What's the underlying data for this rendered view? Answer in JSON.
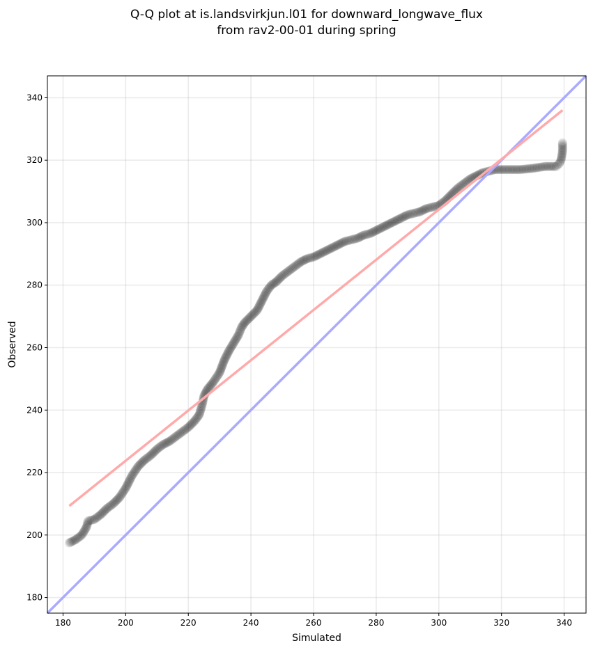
{
  "title_line1": "Q-Q plot at is.landsvirkjun.l01 for downward_longwave_flux",
  "title_line2": "from rav2-00-01 during spring",
  "chart_data": {
    "type": "scatter",
    "title": "Q-Q plot at is.landsvirkjun.l01 for downward_longwave_flux from rav2-00-01 during spring",
    "xlabel": "Simulated",
    "ylabel": "Observed",
    "xlim": [
      175,
      347
    ],
    "ylim": [
      175,
      347
    ],
    "xticks": [
      180,
      200,
      220,
      240,
      260,
      280,
      300,
      320,
      340
    ],
    "yticks": [
      180,
      200,
      220,
      240,
      260,
      280,
      300,
      320,
      340
    ],
    "grid": true,
    "quantile_curve": [
      [
        182,
        197.5
      ],
      [
        184,
        198.5
      ],
      [
        186,
        200
      ],
      [
        187.5,
        202.5
      ],
      [
        188,
        204.5
      ],
      [
        190,
        205
      ],
      [
        192,
        206.5
      ],
      [
        194,
        208.5
      ],
      [
        196,
        210
      ],
      [
        198,
        212
      ],
      [
        200,
        215
      ],
      [
        202,
        219
      ],
      [
        204,
        222
      ],
      [
        206,
        224
      ],
      [
        208,
        225.5
      ],
      [
        210,
        227.5
      ],
      [
        212,
        229
      ],
      [
        214,
        230
      ],
      [
        216,
        231.5
      ],
      [
        218,
        233
      ],
      [
        220,
        234.5
      ],
      [
        222,
        236.5
      ],
      [
        223.5,
        238.5
      ],
      [
        224.5,
        242
      ],
      [
        225,
        244.5
      ],
      [
        226,
        246.5
      ],
      [
        228,
        249
      ],
      [
        230,
        252
      ],
      [
        231.5,
        256
      ],
      [
        233,
        259
      ],
      [
        234.5,
        261.5
      ],
      [
        236,
        264
      ],
      [
        237,
        266.5
      ],
      [
        238,
        268
      ],
      [
        240,
        270
      ],
      [
        242,
        272
      ],
      [
        243.5,
        275
      ],
      [
        245,
        278
      ],
      [
        246.5,
        280
      ],
      [
        248,
        281
      ],
      [
        250,
        283
      ],
      [
        252,
        284.5
      ],
      [
        254,
        286
      ],
      [
        256,
        287.5
      ],
      [
        258,
        288.5
      ],
      [
        260,
        289
      ],
      [
        262,
        290
      ],
      [
        264,
        291
      ],
      [
        266,
        292
      ],
      [
        268,
        293
      ],
      [
        270,
        294
      ],
      [
        272,
        294.5
      ],
      [
        274,
        295
      ],
      [
        276,
        296
      ],
      [
        278,
        296.5
      ],
      [
        280,
        297.5
      ],
      [
        282,
        298.5
      ],
      [
        284,
        299.5
      ],
      [
        286,
        300.5
      ],
      [
        288,
        301.5
      ],
      [
        290,
        302.5
      ],
      [
        292,
        303
      ],
      [
        294,
        303.5
      ],
      [
        296,
        304.5
      ],
      [
        298,
        305
      ],
      [
        300,
        305.5
      ],
      [
        302,
        307
      ],
      [
        304,
        309
      ],
      [
        306,
        311
      ],
      [
        308,
        312.5
      ],
      [
        310,
        314
      ],
      [
        312,
        315
      ],
      [
        314,
        316
      ],
      [
        316,
        316.5
      ],
      [
        318,
        317
      ],
      [
        320,
        317
      ],
      [
        322,
        317
      ],
      [
        324,
        317
      ],
      [
        326,
        317
      ],
      [
        328,
        317.2
      ],
      [
        330,
        317.4
      ],
      [
        332,
        317.7
      ],
      [
        334,
        318
      ],
      [
        336,
        318
      ],
      [
        337.5,
        318
      ],
      [
        338,
        318.5
      ],
      [
        338.5,
        319
      ],
      [
        339,
        320
      ],
      [
        339.2,
        321
      ],
      [
        339.5,
        323
      ],
      [
        339.5,
        325.5
      ]
    ],
    "reference_line": {
      "from": [
        175,
        175
      ],
      "to": [
        347,
        347
      ],
      "color": "#aaaaff"
    },
    "fit_line": {
      "from": [
        182,
        209.3
      ],
      "to": [
        339.5,
        336
      ],
      "color": "#ffaaaa"
    },
    "marker_color": "#000000"
  }
}
